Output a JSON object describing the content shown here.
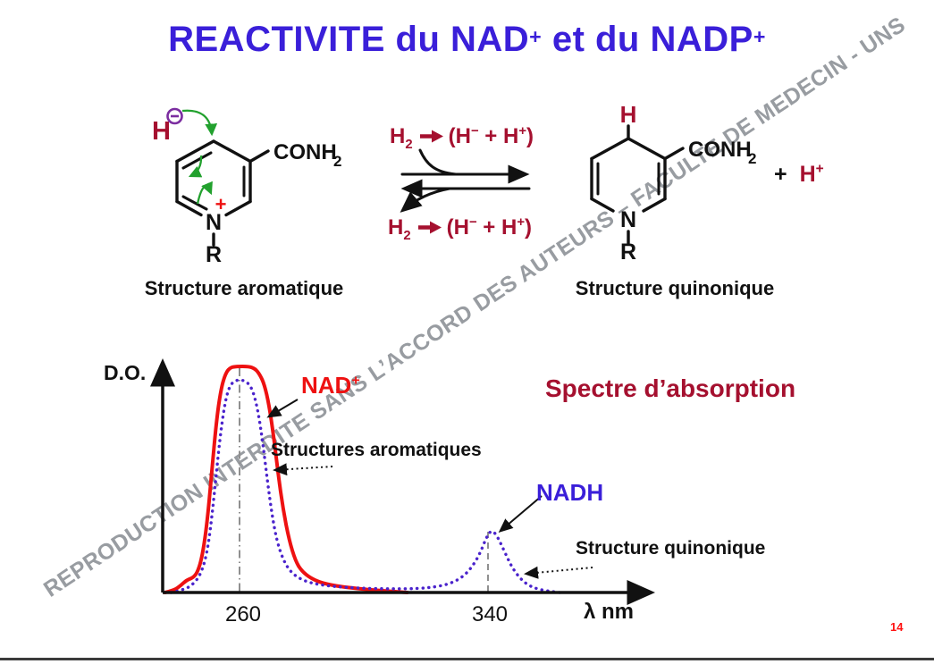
{
  "slide": {
    "page_number": "14"
  },
  "title": {
    "text1": "REACTIVITE du NAD",
    "sup1": "+",
    "text2": " et du NADP",
    "sup2": "+"
  },
  "watermark": {
    "text": "REPRODUCTION INTERDITE SANS L’ACCORD DES AUTEURS – FACULTE DE MEDECIN - UNS"
  },
  "icons": {
    "hydride_charge": "circled-minus",
    "equation_arrow": "heavy-right-arrow",
    "electron_arrows": "green-curved-arrow"
  },
  "molecules": {
    "aromatic": {
      "hydride_h": "H",
      "ring_n": "N",
      "n_charge": "+",
      "r_group": "R",
      "amide": "CONH",
      "amide_sub": "2",
      "caption": "Structure aromatique"
    },
    "quinonic": {
      "top_h": "H",
      "ring_n": "N",
      "r_group": "R",
      "amide": "CONH",
      "amide_sub": "2",
      "plus_sign": "+",
      "proton": "H",
      "proton_sup": "+",
      "caption": "Structure quinonique"
    }
  },
  "reaction": {
    "equation_top": {
      "h2": "H",
      "h2_sub": "2",
      "lhs": "(H",
      "sup_minus": "−",
      "mid": " + H",
      "sup_plus": "+",
      "rhs": ")"
    },
    "equation_bottom": {
      "h2": "H",
      "h2_sub": "2",
      "lhs": "(H",
      "sup_minus": "−",
      "mid": " + H",
      "sup_plus": "+",
      "rhs": ")"
    }
  },
  "spectrum": {
    "title": "Spectre d’absorption",
    "y_label": "D.O.",
    "x_label": "λ nm",
    "tick_260": "260",
    "tick_340": "340",
    "nad_label": {
      "text": "NAD",
      "sup": "+"
    },
    "nadh_label": "NADH",
    "aromatic_annotation": "Structures aromatiques",
    "quinonic_annotation": "Structure quinonique"
  },
  "chart_data": {
    "type": "line",
    "title": "Spectre d’absorption",
    "xlabel": "λ nm",
    "ylabel": "D.O.",
    "x_ticks": [
      260,
      340
    ],
    "x_range": [
      236,
      364
    ],
    "ylim": [
      0,
      1.05
    ],
    "grid": false,
    "guides": [
      {
        "x": 260,
        "style": "dash-dot",
        "top_value": 1.0
      },
      {
        "x": 340,
        "style": "dashed",
        "top_value": 0.275
      }
    ],
    "series": [
      {
        "name": "NAD+",
        "label": "Structures aromatiques",
        "color": "#ee1111",
        "style": "solid",
        "peak_nm": 260,
        "points": [
          [
            236,
            0
          ],
          [
            239,
            0.01
          ],
          [
            241,
            0.03
          ],
          [
            243,
            0.055
          ],
          [
            245,
            0.065
          ],
          [
            246.5,
            0.09
          ],
          [
            248,
            0.16
          ],
          [
            249.5,
            0.3
          ],
          [
            251,
            0.52
          ],
          [
            252.5,
            0.75
          ],
          [
            254,
            0.9
          ],
          [
            255.5,
            0.97
          ],
          [
            257,
            0.995
          ],
          [
            259,
            1
          ],
          [
            263,
            1
          ],
          [
            265,
            0.99
          ],
          [
            266.5,
            0.965
          ],
          [
            268,
            0.92
          ],
          [
            269.5,
            0.83
          ],
          [
            271,
            0.69
          ],
          [
            272.5,
            0.52
          ],
          [
            274,
            0.37
          ],
          [
            276,
            0.23
          ],
          [
            278,
            0.14
          ],
          [
            280,
            0.095
          ],
          [
            283,
            0.062
          ],
          [
            287,
            0.04
          ],
          [
            292,
            0.027
          ],
          [
            298,
            0.017
          ],
          [
            305,
            0.009
          ],
          [
            311,
            0.003
          ],
          [
            314,
            0
          ]
        ]
      },
      {
        "name": "NADH",
        "label": "Structure quinonique",
        "color": "#4a23cc",
        "style": "dotted",
        "peak_nm": [
          260,
          340
        ],
        "points": [
          [
            238,
            0
          ],
          [
            242,
            0.012
          ],
          [
            245,
            0.035
          ],
          [
            247.5,
            0.08
          ],
          [
            249.5,
            0.17
          ],
          [
            251,
            0.32
          ],
          [
            252.5,
            0.52
          ],
          [
            254,
            0.72
          ],
          [
            255.5,
            0.855
          ],
          [
            257,
            0.92
          ],
          [
            259,
            0.94
          ],
          [
            261,
            0.94
          ],
          [
            263,
            0.925
          ],
          [
            264.5,
            0.885
          ],
          [
            266,
            0.8
          ],
          [
            267.5,
            0.66
          ],
          [
            269,
            0.49
          ],
          [
            270.5,
            0.34
          ],
          [
            272,
            0.23
          ],
          [
            274,
            0.145
          ],
          [
            276.5,
            0.09
          ],
          [
            279.5,
            0.06
          ],
          [
            283,
            0.042
          ],
          [
            288,
            0.03
          ],
          [
            294,
            0.023
          ],
          [
            301,
            0.018
          ],
          [
            309,
            0.016
          ],
          [
            317,
            0.017
          ],
          [
            323,
            0.024
          ],
          [
            328,
            0.04
          ],
          [
            332,
            0.07
          ],
          [
            335,
            0.115
          ],
          [
            337.5,
            0.175
          ],
          [
            339.5,
            0.245
          ],
          [
            341,
            0.275
          ],
          [
            342.5,
            0.26
          ],
          [
            344,
            0.22
          ],
          [
            346,
            0.16
          ],
          [
            348,
            0.105
          ],
          [
            350.5,
            0.06
          ],
          [
            353,
            0.032
          ],
          [
            356,
            0.015
          ],
          [
            359.5,
            0.006
          ],
          [
            363,
            0
          ]
        ]
      }
    ],
    "legend_position": "annotations-on-plot"
  },
  "colors": {
    "title_blue": "#3a1fd9",
    "crimson": "#a5102f",
    "bright_red": "#ee1111",
    "curve_blue": "#4a23cc",
    "green_arrow": "#22a12e",
    "purple_charge": "#7b2da0",
    "watermark_gray": "#8a8e94",
    "page_number_red": "#ff1111"
  }
}
